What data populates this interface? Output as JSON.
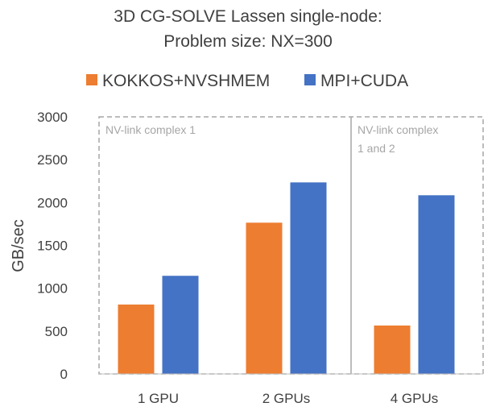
{
  "chart_data": {
    "type": "bar",
    "title_lines": [
      "3D CG-SOLVE Lassen single-node:",
      "Problem size: NX=300"
    ],
    "xlabel": "",
    "ylabel": "GB/sec",
    "categories": [
      "1 GPU",
      "2 GPUs",
      "4 GPUs"
    ],
    "series": [
      {
        "name": "KOKKOS+NVSHMEM",
        "values": [
          810,
          1765,
          565
        ],
        "color": "#ed7d31"
      },
      {
        "name": "MPI+CUDA",
        "values": [
          1145,
          2235,
          2085
        ],
        "color": "#4472c4"
      }
    ],
    "ylim": [
      0,
      3000
    ],
    "yticks": [
      0,
      500,
      1000,
      1500,
      2000,
      2500,
      3000
    ],
    "grid": false,
    "legend_position": "top",
    "annotations": [
      {
        "lines": [
          "NV-link complex 1"
        ],
        "spans_categories": [
          "1 GPU",
          "2 GPUs"
        ]
      },
      {
        "lines": [
          "NV-link complex",
          "1 and 2"
        ],
        "spans_categories": [
          "4 GPUs"
        ]
      }
    ]
  }
}
